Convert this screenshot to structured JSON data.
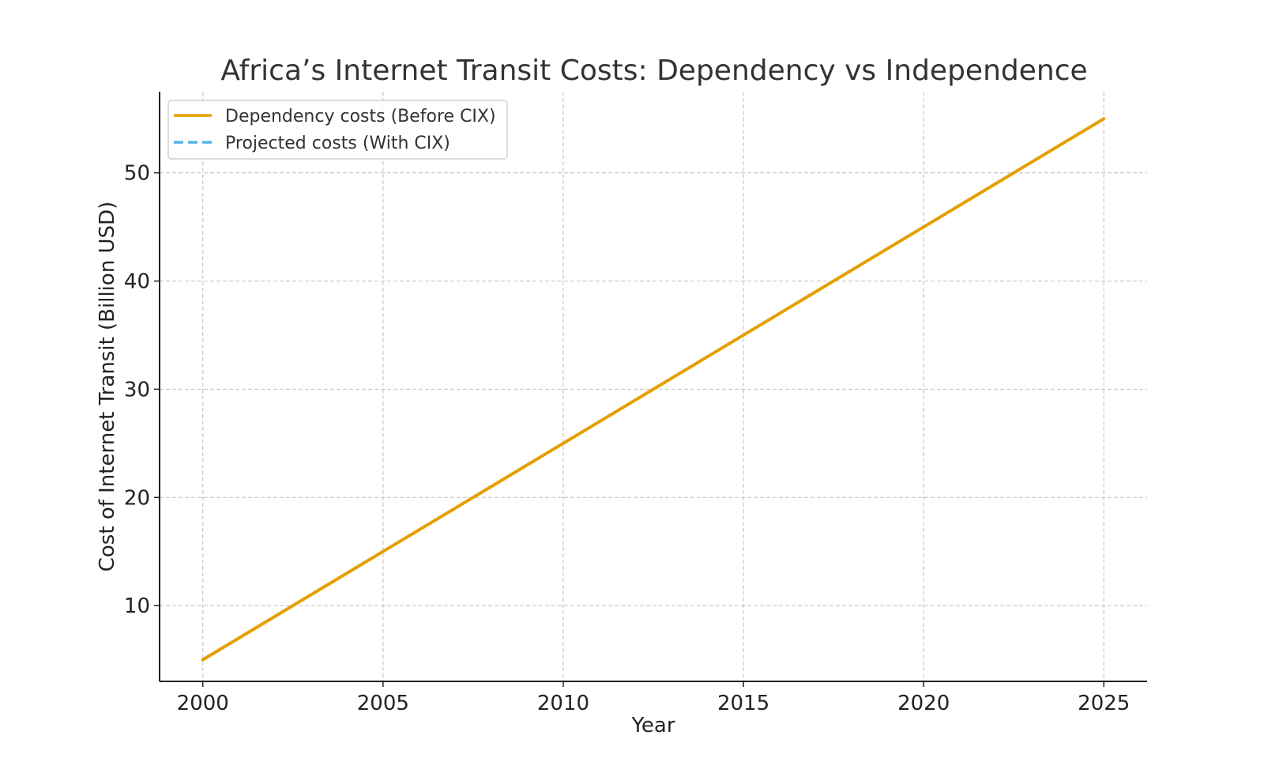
{
  "chart_data": {
    "type": "line",
    "title": "Africa’s Internet Transit Costs: Dependency vs Independence",
    "xlabel": "Year",
    "ylabel": "Cost of Internet Transit (Billion USD)",
    "xlim": [
      1998.8,
      2026.2
    ],
    "ylim": [
      3.0,
      57.5
    ],
    "x_ticks": [
      2000,
      2005,
      2010,
      2015,
      2020,
      2025
    ],
    "y_ticks": [
      10,
      20,
      30,
      40,
      50
    ],
    "grid": true,
    "legend_position": "top-left",
    "series": [
      {
        "name": "Dependency costs (Before CIX)",
        "color": "#E69F00",
        "style": "solid",
        "x": [
          2000,
          2025
        ],
        "y": [
          5,
          55
        ]
      },
      {
        "name": "Projected costs (With CIX)",
        "color": "#56B4E9",
        "style": "dashed",
        "x": [],
        "y": []
      }
    ]
  }
}
